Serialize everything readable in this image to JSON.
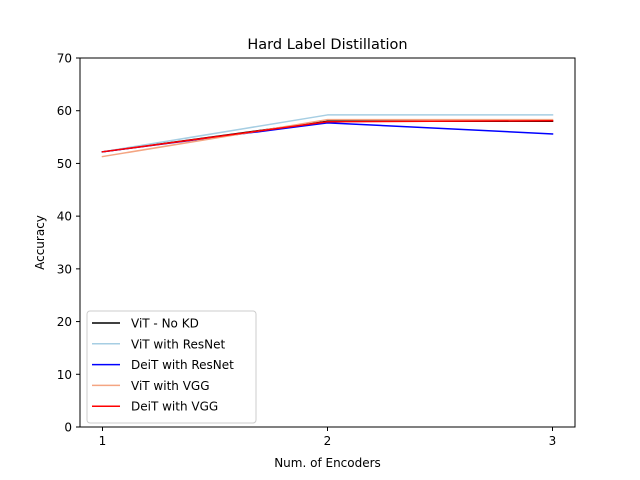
{
  "chart_data": {
    "type": "line",
    "title": "Hard Label Distillation",
    "xlabel": "Num. of Encoders",
    "ylabel": "Accuracy",
    "x": [
      1,
      2,
      3
    ],
    "x_ticks": [
      "1",
      "2",
      "3"
    ],
    "xlim": [
      0.9,
      3.1
    ],
    "ylim": [
      0,
      70
    ],
    "y_ticks": [
      "0",
      "10",
      "20",
      "30",
      "40",
      "50",
      "60",
      "70"
    ],
    "grid": false,
    "legend_position": "lower-left",
    "series": [
      {
        "name": "ViT - No KD",
        "color": "#000000",
        "values": [
          52.2,
          58.0,
          58.0
        ]
      },
      {
        "name": "ViT with ResNet",
        "color": "#a6cee3",
        "values": [
          52.2,
          59.2,
          59.2
        ]
      },
      {
        "name": "DeiT with ResNet",
        "color": "#0000ff",
        "values": [
          52.2,
          57.7,
          55.6
        ]
      },
      {
        "name": "ViT with VGG",
        "color": "#f4a582",
        "values": [
          51.3,
          58.3,
          58.3
        ]
      },
      {
        "name": "DeiT with VGG",
        "color": "#ff0000",
        "values": [
          52.2,
          57.9,
          58.1
        ]
      }
    ]
  }
}
